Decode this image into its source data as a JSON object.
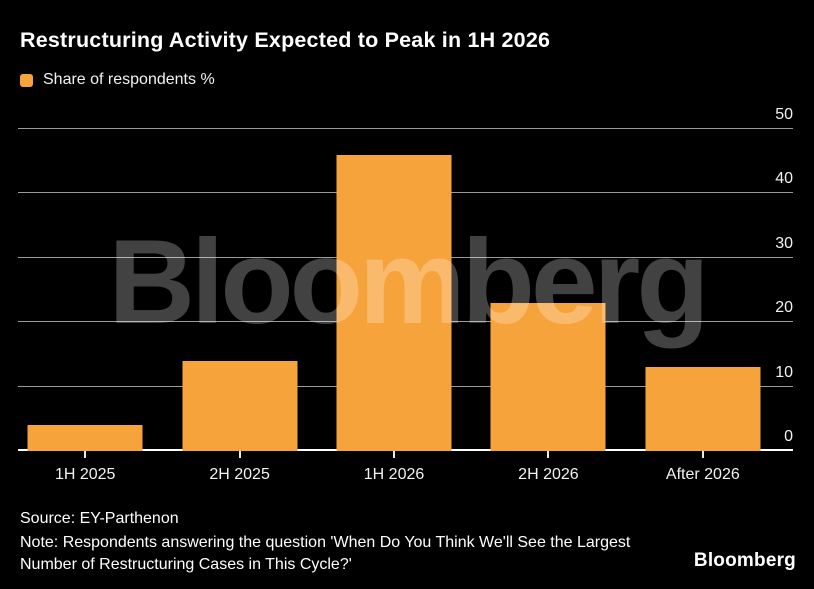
{
  "title": "Restructuring Activity Expected to Peak in 1H 2026",
  "legend": {
    "label": "Share of respondents %",
    "swatch_color": "#F7A33B"
  },
  "chart_data": {
    "type": "bar",
    "categories": [
      "1H 2025",
      "2H 2025",
      "1H 2026",
      "2H 2026",
      "After 2026"
    ],
    "values": [
      4,
      14,
      46,
      23,
      13
    ],
    "series_name": "Share of respondents %",
    "title": "Restructuring Activity Expected to Peak in 1H 2026",
    "xlabel": "",
    "ylabel": "Share of respondents %",
    "ylim": [
      0,
      50
    ],
    "yticks": [
      0,
      10,
      20,
      30,
      40,
      50
    ],
    "y_axis_side": "right",
    "grid": "horizontal-only",
    "legend_position": "top-left",
    "bar_color": "#F7A33B",
    "background_color": "#000000",
    "gridline_color": "#9B9B9B",
    "axis_line_color": "#FFFFFF"
  },
  "watermark": "Bloomberg",
  "footer": {
    "source": "Source: EY-Parthenon",
    "note": "Note: Respondents answering the question 'When Do You Think We'll See the Largest Number of Restructuring Cases in This Cycle?'",
    "brand": "Bloomberg"
  }
}
